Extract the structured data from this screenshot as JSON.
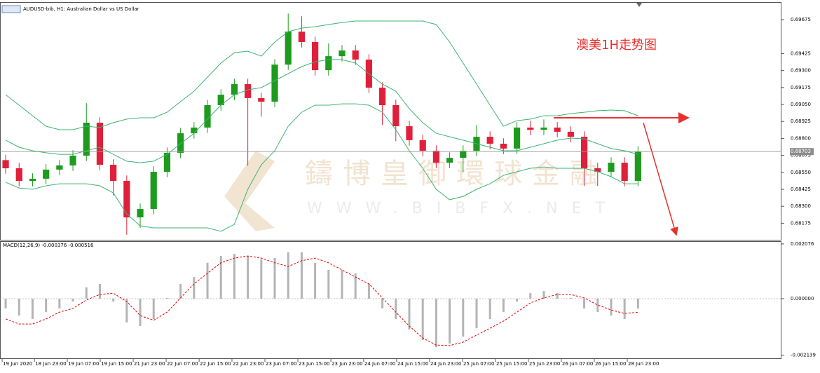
{
  "chart_data": [
    {
      "type": "candlestick",
      "title": "AUDUSD-bib, H1:  Australian Dollar vs US Dollar",
      "annotation": "澳美1H走势图",
      "up_color": "#1e9b1e",
      "down_color": "#e0203a",
      "open": [
        0.6864,
        0.6858,
        0.68487,
        0.68503,
        0.6857,
        0.68601,
        0.68673,
        0.68916,
        0.68606,
        0.68487,
        0.68218,
        0.6828,
        0.68554,
        0.68694,
        0.68838,
        0.6888,
        0.69045,
        0.69122,
        0.692,
        0.69097,
        0.69071,
        0.69344,
        0.69587,
        0.6951,
        0.69303,
        0.69406,
        0.69448,
        0.69381,
        0.69174,
        0.69045,
        0.6889,
        0.68787,
        0.68709,
        0.68621,
        0.68657,
        0.68709,
        0.68812,
        0.68761,
        0.68725,
        0.6888,
        0.68864,
        0.6888,
        0.68849,
        0.68812,
        0.6858,
        0.68554,
        0.68621,
        0.68487
      ],
      "high": [
        0.6868,
        0.6862,
        0.68543,
        0.6861,
        0.68641,
        0.68713,
        0.6906,
        0.68956,
        0.68646,
        0.68527,
        0.6832,
        0.68594,
        0.68734,
        0.68878,
        0.6892,
        0.69085,
        0.69162,
        0.6924,
        0.6924,
        0.69137,
        0.69384,
        0.6972,
        0.697,
        0.6955,
        0.695,
        0.69488,
        0.69488,
        0.69421,
        0.69214,
        0.69085,
        0.6893,
        0.68827,
        0.68749,
        0.68697,
        0.68749,
        0.689,
        0.68852,
        0.68801,
        0.6892,
        0.6893,
        0.6894,
        0.6892,
        0.68889,
        0.68852,
        0.6862,
        0.68661,
        0.68661,
        0.68743
      ],
      "low": [
        0.6854,
        0.68447,
        0.68447,
        0.68463,
        0.6853,
        0.68561,
        0.68633,
        0.68566,
        0.6838,
        0.6809,
        0.6814,
        0.6824,
        0.68514,
        0.68654,
        0.68798,
        0.6884,
        0.69005,
        0.69082,
        0.686,
        0.6896,
        0.69031,
        0.69304,
        0.6947,
        0.69263,
        0.69263,
        0.69366,
        0.69341,
        0.69134,
        0.689,
        0.6878,
        0.68747,
        0.68669,
        0.68581,
        0.68581,
        0.6855,
        0.68669,
        0.68721,
        0.68685,
        0.68685,
        0.68824,
        0.68824,
        0.68809,
        0.68772,
        0.6845,
        0.6845,
        0.68514,
        0.68447,
        0.68447
      ],
      "close": [
        0.6858,
        0.68487,
        0.68503,
        0.6857,
        0.68601,
        0.68673,
        0.68916,
        0.68606,
        0.68487,
        0.68218,
        0.6828,
        0.68554,
        0.68694,
        0.68838,
        0.6888,
        0.69045,
        0.69122,
        0.692,
        0.69097,
        0.69071,
        0.69344,
        0.69587,
        0.6951,
        0.69303,
        0.69406,
        0.69448,
        0.69381,
        0.69174,
        0.69045,
        0.6889,
        0.68787,
        0.68709,
        0.68621,
        0.68657,
        0.68709,
        0.68812,
        0.68761,
        0.68725,
        0.6888,
        0.68864,
        0.6888,
        0.68849,
        0.68812,
        0.6858,
        0.68554,
        0.68621,
        0.68487,
        0.68703
      ],
      "series": [
        {
          "color": "#3cb371",
          "values": [
            0.69122,
            0.69045,
            0.68967,
            0.6889,
            0.68864,
            0.68864,
            0.6889,
            0.6888,
            0.68916,
            0.68942,
            0.68952,
            0.68952,
            0.68993,
            0.69071,
            0.69148,
            0.69251,
            0.69355,
            0.69432,
            0.69443,
            0.69406,
            0.6951,
            0.69587,
            0.69613,
            0.69623,
            0.69639,
            0.69654,
            0.69665,
            0.69665,
            0.69665,
            0.69665,
            0.69665,
            0.69665,
            0.69639,
            0.6951,
            0.69355,
            0.692,
            0.69045,
            0.6889,
            0.68931,
            0.68942,
            0.68967,
            0.68967,
            0.68983,
            0.68993,
            0.69004,
            0.69009,
            0.69004,
            0.68967
          ]
        },
        {
          "color": "#3cb371",
          "values": [
            0.68787,
            0.68735,
            0.68709,
            0.68694,
            0.68683,
            0.68683,
            0.68709,
            0.68735,
            0.68683,
            0.68632,
            0.68621,
            0.68632,
            0.68683,
            0.68761,
            0.68838,
            0.68942,
            0.69045,
            0.69122,
            0.69158,
            0.69174,
            0.69226,
            0.69277,
            0.69329,
            0.69365,
            0.69381,
            0.69381,
            0.69355,
            0.69277,
            0.692,
            0.69148,
            0.69019,
            0.68916,
            0.68838,
            0.68812,
            0.68787,
            0.68761,
            0.68735,
            0.68709,
            0.68709,
            0.68735,
            0.68761,
            0.68787,
            0.68802,
            0.68797,
            0.68761,
            0.68725,
            0.68709,
            0.68683
          ]
        },
        {
          "color": "#3cb371",
          "values": [
            0.68477,
            0.68435,
            0.68425,
            0.68451,
            0.68466,
            0.68466,
            0.68466,
            0.68451,
            0.68399,
            0.68244,
            0.68156,
            0.68141,
            0.68141,
            0.68141,
            0.68141,
            0.68141,
            0.68115,
            0.68167,
            0.68425,
            0.68606,
            0.68709,
            0.6889,
            0.68993,
            0.69045,
            0.69045,
            0.69055,
            0.69055,
            0.69045,
            0.68993,
            0.68864,
            0.68709,
            0.6858,
            0.68425,
            0.68348,
            0.68373,
            0.68425,
            0.68466,
            0.68528,
            0.68554,
            0.6858,
            0.6859,
            0.6858,
            0.6858,
            0.6858,
            0.68554,
            0.68518,
            0.68466,
            0.68466
          ]
        }
      ],
      "last_price": 0.68703,
      "xlim": [
        -0.42,
        57.66
      ],
      "ylim": [
        0.68053,
        0.6982
      ],
      "yticks": [
        0.69675,
        0.69425,
        {
          "value": 0.693,
          "label": "0.69300"
        },
        0.69175,
        {
          "value": 0.6905,
          "label": "0.69050"
        },
        0.68925,
        {
          "value": 0.688,
          "label": "0.68800"
        },
        0.68675,
        {
          "value": 0.6855,
          "label": "0.68550"
        },
        0.68425,
        {
          "value": 0.683,
          "label": "0.68300"
        },
        0.68175
      ]
    },
    {
      "type": "bar",
      "title": "MACD(12,26,9) -0.000376 -0.000516",
      "color": "#b4b4b4",
      "values": [
        -0.00037,
        -0.00064,
        -0.00077,
        -0.00051,
        -0.00037,
        -0.00011,
        0.00043,
        0.00056,
        -0.00011,
        -0.0009,
        -0.00104,
        -0.00077,
        3e-05,
        0.00056,
        0.00082,
        0.00136,
        0.00162,
        0.0017,
        0.00162,
        0.00149,
        0.00154,
        0.00176,
        0.00176,
        0.00136,
        0.00109,
        0.00109,
        0.00096,
        0.00056,
        -0.00037,
        -0.00077,
        -0.00117,
        -0.00157,
        -0.00184,
        -0.0017,
        -0.00144,
        -0.00112,
        -0.00077,
        -0.00051,
        -0.00011,
        0.00021,
        0.00029,
        0.00021,
        3e-05,
        -0.00037,
        -0.00051,
        -0.00064,
        -0.00077,
        -0.000376
      ],
      "series": [
        {
          "color": "#e00000",
          "values": [
            -0.00077,
            -0.00096,
            -0.00096,
            -0.00077,
            -0.00051,
            -0.00037,
            -5e-05,
            0.00016,
            0.00021,
            -0.00011,
            -0.00064,
            -0.00082,
            -0.00051,
            3e-05,
            0.00056,
            0.00096,
            0.00136,
            0.00154,
            0.00162,
            0.00154,
            0.00136,
            0.00122,
            0.00144,
            0.00154,
            0.00136,
            0.00109,
            0.00082,
            0.00056,
            3e-05,
            -0.00051,
            -0.00104,
            -0.00149,
            -0.00176,
            -0.00178,
            -0.00165,
            -0.00138,
            -0.00112,
            -0.00085,
            -0.00051,
            -0.00016,
            3e-05,
            0.00016,
            0.00016,
            3e-05,
            -0.00024,
            -0.00043,
            -0.00056,
            -0.000516
          ]
        }
      ],
      "xlim": [
        -0.42,
        57.66
      ],
      "ylim": [
        -0.002287,
        0.00218
      ],
      "yticks": [
        0.002076,
        {
          "value": 0,
          "label": "0.000000"
        },
        -0.002139
      ],
      "xticks": [
        {
          "value": -0.26,
          "label": "19 Jun 2020"
        },
        {
          "value": 2.14,
          "label": "18 Jun 23:00"
        },
        {
          "value": 4.58,
          "label": "19 Jun 07:00"
        },
        {
          "value": 7.03,
          "label": "19 Jun 15:00"
        },
        {
          "value": 9.48,
          "label": "21 Jun 23:00"
        },
        {
          "value": 11.93,
          "label": "22 Jun 07:00"
        },
        {
          "value": 14.38,
          "label": "22 Jun 15:00"
        },
        {
          "value": 16.82,
          "label": "22 Jun 23:00"
        },
        {
          "value": 19.27,
          "label": "23 Jun 07:00"
        },
        {
          "value": 21.72,
          "label": "23 Jun 15:00"
        },
        {
          "value": 24.17,
          "label": "23 Jun 23:00"
        },
        {
          "value": 26.61,
          "label": "24 Jun 07:00"
        },
        {
          "value": 29.06,
          "label": "24 Jun 15:00"
        },
        {
          "value": 31.51,
          "label": "24 Jun 23:00"
        },
        {
          "value": 33.96,
          "label": "25 Jun 07:00"
        },
        {
          "value": 36.41,
          "label": "25 Jun 15:00"
        },
        {
          "value": 38.85,
          "label": "25 Jun 23:00"
        },
        {
          "value": 41.3,
          "label": "26 Jun 07:00"
        },
        {
          "value": 43.75,
          "label": "26 Jun 15:00"
        },
        {
          "value": 46.2,
          "label": "28 Jun 23:00"
        }
      ]
    }
  ],
  "watermark": {
    "name": "鑄博皇御環球金融",
    "url": "WWW.BIBFX.NET"
  }
}
